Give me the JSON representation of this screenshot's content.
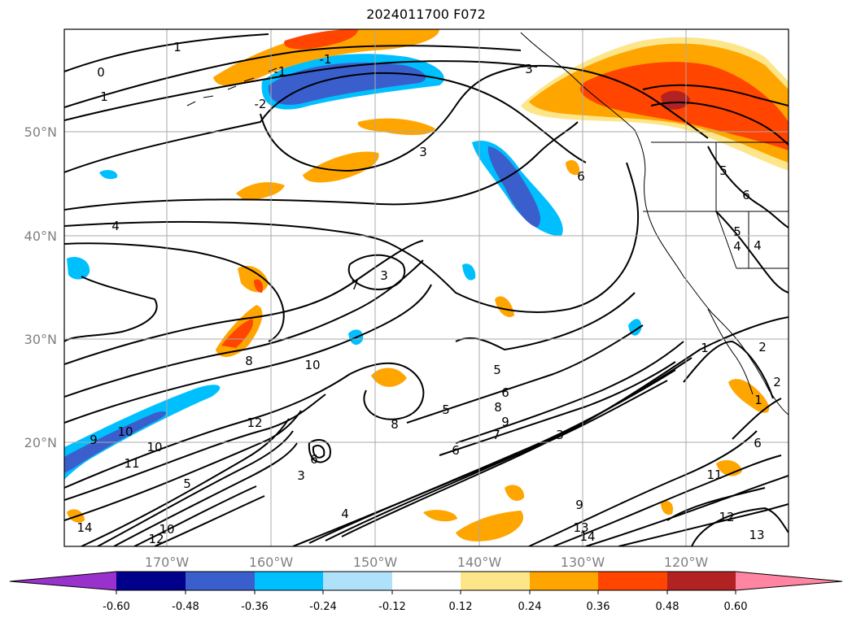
{
  "title": "2024011700 F072",
  "map": {
    "lon_ticks": [
      "170°W",
      "160°W",
      "150°W",
      "140°W",
      "130°W",
      "120°W"
    ],
    "lat_ticks": [
      "50°N",
      "40°N",
      "30°N",
      "20°N"
    ],
    "grid": true,
    "contour_labels": [
      "1",
      "0",
      "-1",
      "-2",
      "-1",
      "1",
      "3",
      "3",
      "6",
      "4",
      "7",
      "3",
      "8",
      "10",
      "5",
      "5",
      "6",
      "8",
      "9",
      "7",
      "3",
      "6",
      "8",
      "12",
      "9",
      "10",
      "10",
      "11",
      "10",
      "12",
      "14",
      "4",
      "3",
      "5",
      "6",
      "9",
      "13",
      "14",
      "12",
      "13",
      "11",
      "6",
      "1",
      "2",
      "5",
      "6",
      "4",
      "4",
      "5",
      "1",
      "2"
    ]
  },
  "colorbar": {
    "ticks": [
      "-0.60",
      "-0.48",
      "-0.36",
      "-0.24",
      "-0.12",
      "0.12",
      "0.24",
      "0.36",
      "0.48",
      "0.60"
    ],
    "colors": [
      "#9932cc",
      "#00008b",
      "#3a5fcd",
      "#00bfff",
      "#afe1fa",
      "#ffffff",
      "#fde68a",
      "#ffa500",
      "#ff4500",
      "#b22222",
      "#ff85a2"
    ]
  }
}
